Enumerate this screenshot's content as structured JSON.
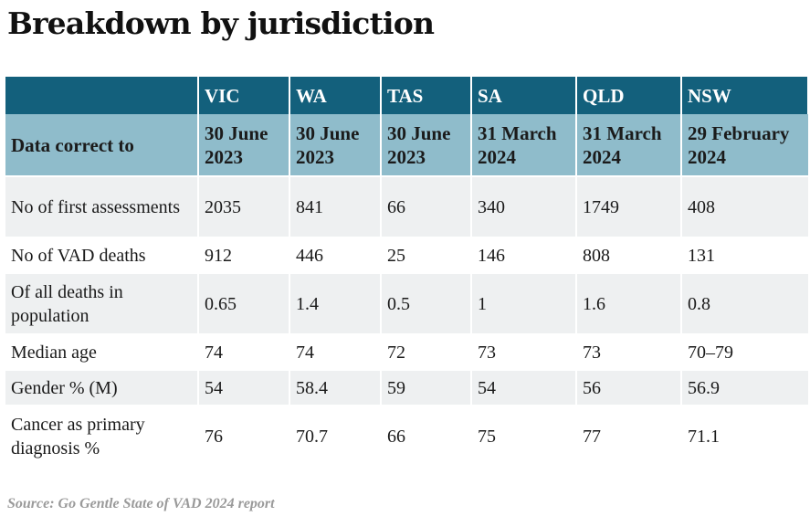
{
  "title": "Breakdown by jurisdiction",
  "table": {
    "columns": [
      "",
      "VIC",
      "WA",
      "TAS",
      "SA",
      "QLD",
      "NSW"
    ],
    "rows": [
      {
        "label": "Data correct to",
        "values": [
          "30 June 2023",
          "30 June 2023",
          "30 June 2023",
          "31 March 2024",
          "31 March 2024",
          "29 February 2024"
        ]
      },
      {
        "label": "No of first assessments",
        "values": [
          "2035",
          "841",
          "66",
          "340",
          "1749",
          "408"
        ]
      },
      {
        "label": "No of VAD deaths",
        "values": [
          "912",
          "446",
          "25",
          "146",
          "808",
          "131"
        ]
      },
      {
        "label": "Of all deaths in population",
        "values": [
          "0.65",
          "1.4",
          "0.5",
          "1",
          "1.6",
          "0.8"
        ]
      },
      {
        "label": "Median age",
        "values": [
          "74",
          "74",
          "72",
          "73",
          "73",
          "70–79"
        ]
      },
      {
        "label": "Gender % (M)",
        "values": [
          "54",
          "58.4",
          "59",
          "54",
          "56",
          "56.9"
        ]
      },
      {
        "label": "Cancer as primary diagnosis %",
        "values": [
          "76",
          "70.7",
          "66",
          "75",
          "77",
          "71.1"
        ]
      }
    ]
  },
  "source": "Source: Go Gentle State of VAD 2024 report",
  "colors": {
    "header": "#13607c",
    "subheader": "#8fbccb",
    "stripe": "#eef0f1"
  }
}
